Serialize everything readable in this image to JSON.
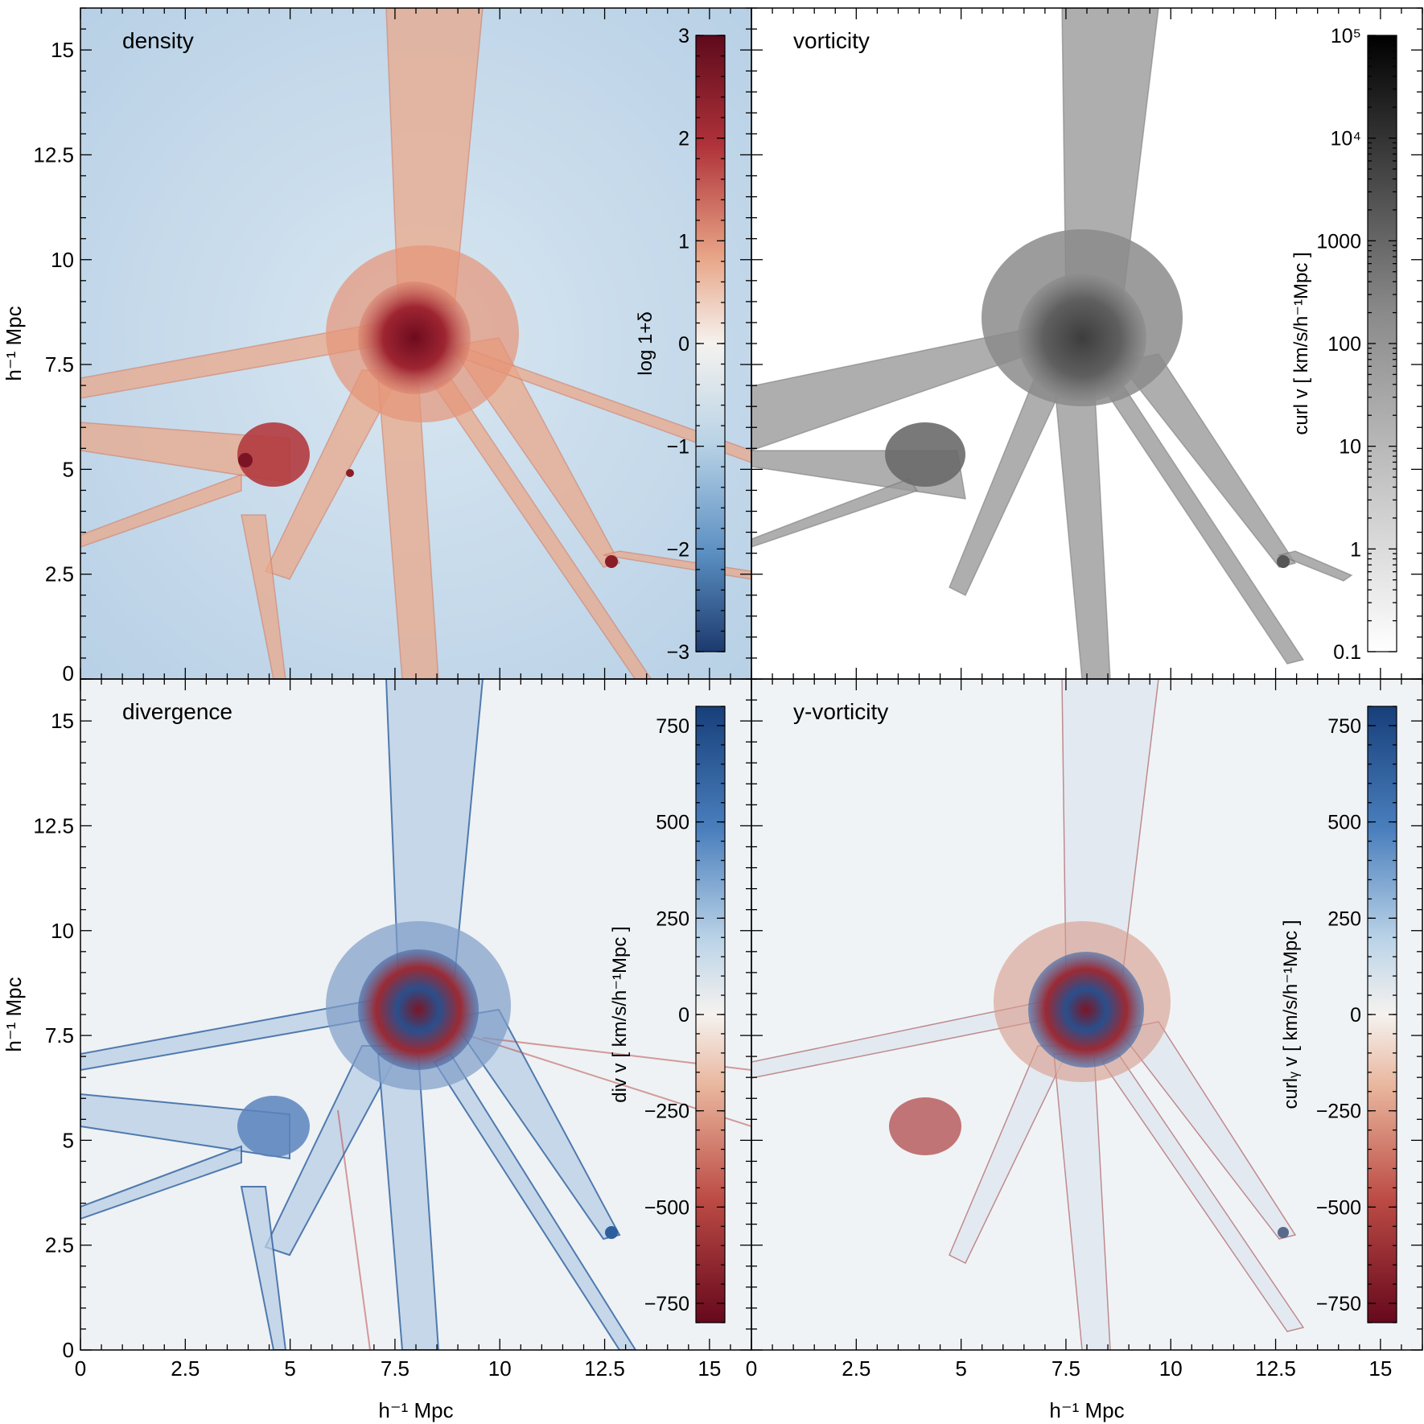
{
  "figure": {
    "axis_label_x": "h⁻¹ Mpc",
    "axis_label_y": "h⁻¹ Mpc"
  },
  "colors": {
    "density_low": "#2b5591",
    "density_mid": "#f3f5f6",
    "density_high": "#6b0a1e",
    "density_background": "#bfd6e9",
    "density_filament": "#e9a88a",
    "density_core": "#8e1b26",
    "vorticity_filament": "#8c8c8c",
    "vorticity_core": "#4a4a4a",
    "div_positive": "#1b4b8f",
    "div_negative": "#8d1a24",
    "div_background": "#eef2f5"
  },
  "chart_data": [
    {
      "type": "heatmap",
      "title": "density",
      "xlabel": "h⁻¹ Mpc",
      "ylabel": "h⁻¹ Mpc",
      "xlim": [
        0,
        16
      ],
      "ylim": [
        0,
        16
      ],
      "xticks": [
        "0",
        "2.5",
        "5",
        "7.5",
        "10",
        "12.5",
        "15"
      ],
      "yticks": [
        "0",
        "2.5",
        "5",
        "7.5",
        "10",
        "12.5",
        "15"
      ],
      "colorbar": {
        "label": "log 1+δ",
        "range": [
          -3,
          3
        ],
        "scale": "linear",
        "ticks": [
          "−3",
          "−2",
          "−1",
          "0",
          "1",
          "2",
          "3"
        ],
        "colormap": "blue-white-red"
      }
    },
    {
      "type": "heatmap",
      "title": "vorticity",
      "xlabel": "h⁻¹ Mpc",
      "ylabel": "h⁻¹ Mpc",
      "xlim": [
        0,
        16
      ],
      "ylim": [
        0,
        16
      ],
      "xticks": [
        "0",
        "2.5",
        "5",
        "7.5",
        "10",
        "12.5",
        "15"
      ],
      "yticks": [
        "0",
        "2.5",
        "5",
        "7.5",
        "10",
        "12.5",
        "15"
      ],
      "colorbar": {
        "label": "curl v  [ km/s/h⁻¹Mpc ]",
        "range": [
          0.1,
          100000
        ],
        "scale": "log",
        "ticks": [
          "0.1",
          "1",
          "10",
          "100",
          "1000",
          "10⁴",
          "10⁵"
        ],
        "colormap": "white-black"
      }
    },
    {
      "type": "heatmap",
      "title": "divergence",
      "xlabel": "h⁻¹ Mpc",
      "ylabel": "h⁻¹ Mpc",
      "xlim": [
        0,
        16
      ],
      "ylim": [
        0,
        16
      ],
      "xticks": [
        "0",
        "2.5",
        "5",
        "7.5",
        "10",
        "12.5",
        "15"
      ],
      "yticks": [
        "0",
        "2.5",
        "5",
        "7.5",
        "10",
        "12.5",
        "15"
      ],
      "colorbar": {
        "label": "div v  [ km/s/h⁻¹Mpc ]",
        "range": [
          -800,
          800
        ],
        "scale": "linear",
        "ticks": [
          "−750",
          "−500",
          "−250",
          "0",
          "250",
          "500",
          "750"
        ],
        "colormap": "red-white-blue"
      }
    },
    {
      "type": "heatmap",
      "title": "y-vorticity",
      "xlabel": "h⁻¹ Mpc",
      "ylabel": "h⁻¹ Mpc",
      "xlim": [
        0,
        16
      ],
      "ylim": [
        0,
        16
      ],
      "xticks": [
        "0",
        "2.5",
        "5",
        "7.5",
        "10",
        "12.5",
        "15"
      ],
      "yticks": [
        "0",
        "2.5",
        "5",
        "7.5",
        "10",
        "12.5",
        "15"
      ],
      "colorbar": {
        "label": "curlᵧ v  [ km/s/h⁻¹Mpc ]",
        "range": [
          -800,
          800
        ],
        "scale": "linear",
        "ticks": [
          "−750",
          "−500",
          "−250",
          "0",
          "250",
          "500",
          "750"
        ],
        "colormap": "red-white-blue"
      }
    }
  ]
}
